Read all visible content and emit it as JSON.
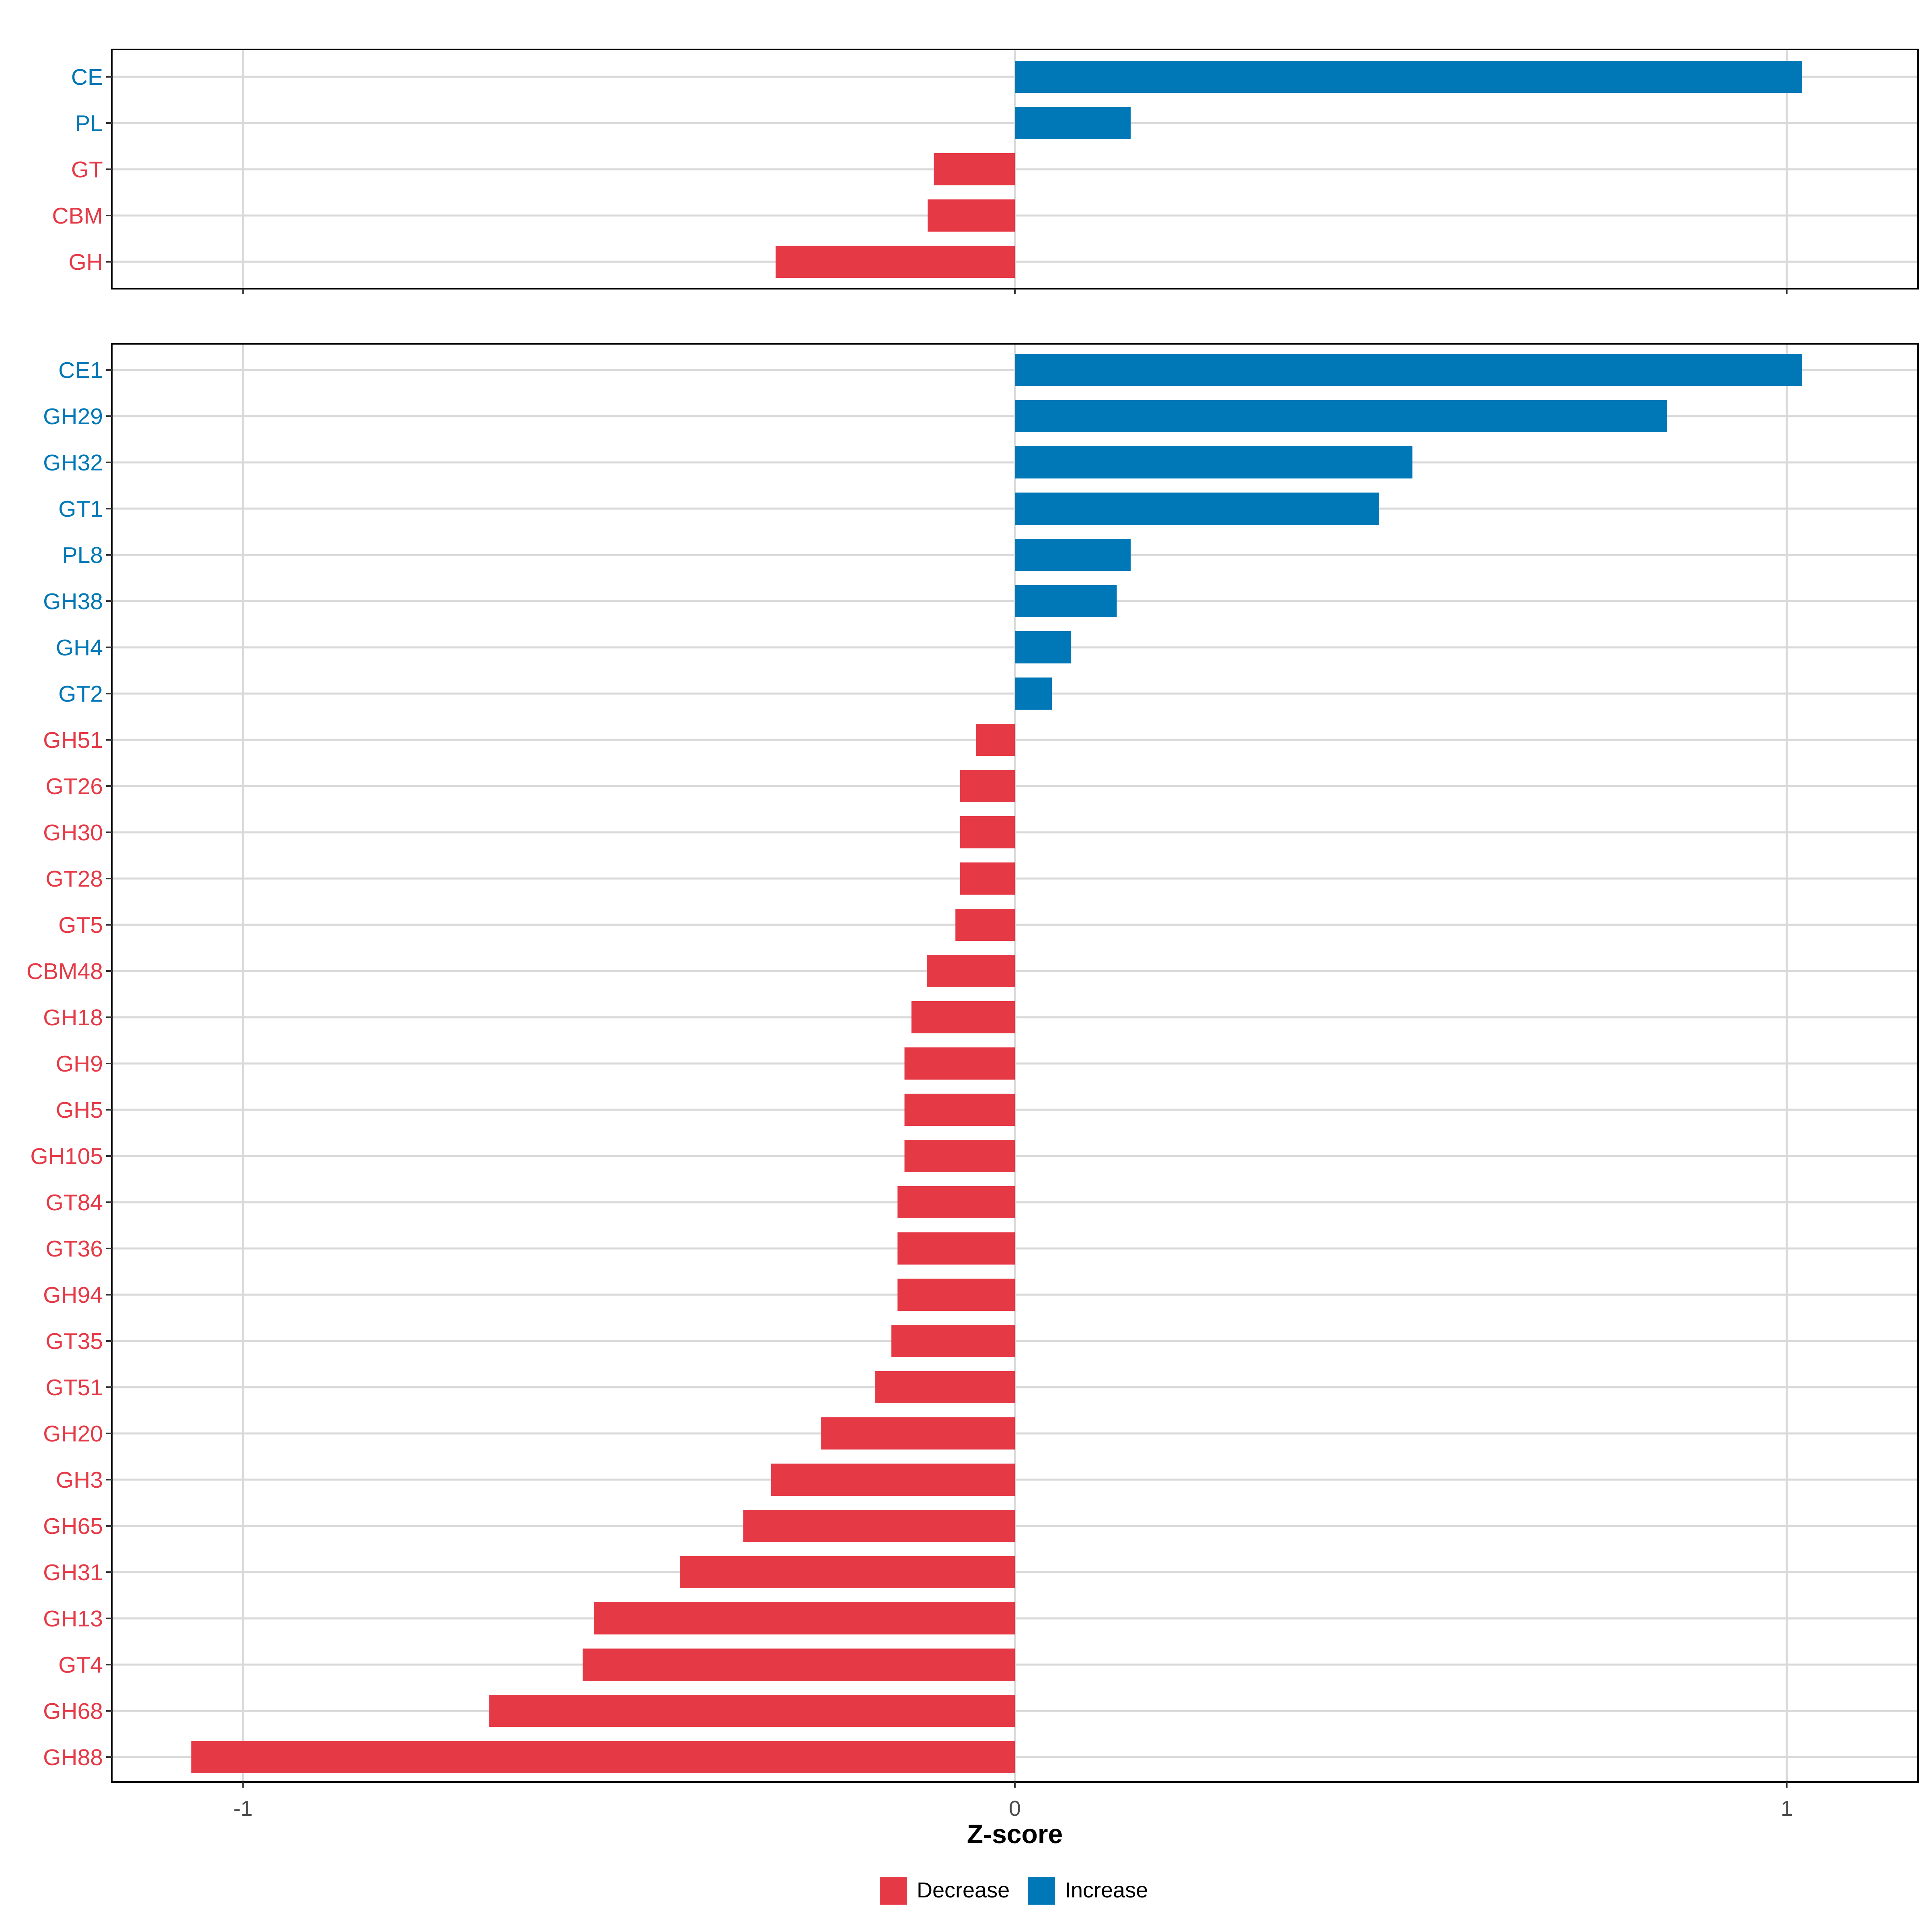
{
  "colors": {
    "decrease": "#e63946",
    "increase": "#0077b6",
    "grid": "#d9d9d9",
    "axis": "#333333"
  },
  "chart_data": [
    {
      "type": "bar",
      "orientation": "horizontal",
      "panel": "top",
      "categories": [
        "CE",
        "PL",
        "GT",
        "CBM",
        "GH"
      ],
      "values": [
        1.02,
        0.15,
        -0.105,
        -0.113,
        -0.31
      ],
      "direction": [
        "Increase",
        "Increase",
        "Decrease",
        "Decrease",
        "Decrease"
      ],
      "xlim": [
        -1.17,
        1.17
      ],
      "xticks": [
        -1,
        0,
        1
      ],
      "xtick_labels": [
        "",
        "",
        ""
      ],
      "xlabel": "",
      "grid": true
    },
    {
      "type": "bar",
      "orientation": "horizontal",
      "panel": "bottom",
      "categories": [
        "CE1",
        "GH29",
        "GH32",
        "GT1",
        "PL8",
        "GH38",
        "GH4",
        "GT2",
        "GH51",
        "GT26",
        "GH30",
        "GT28",
        "GT5",
        "CBM48",
        "GH18",
        "GH9",
        "GH5",
        "GH105",
        "GT84",
        "GT36",
        "GH94",
        "GT35",
        "GT51",
        "GH20",
        "GH3",
        "GH65",
        "GH31",
        "GH13",
        "GT4",
        "GH68",
        "GH88"
      ],
      "values": [
        1.02,
        0.845,
        0.515,
        0.472,
        0.15,
        0.132,
        0.073,
        0.048,
        -0.05,
        -0.071,
        -0.071,
        -0.071,
        -0.077,
        -0.114,
        -0.134,
        -0.143,
        -0.143,
        -0.143,
        -0.152,
        -0.152,
        -0.152,
        -0.16,
        -0.181,
        -0.251,
        -0.316,
        -0.352,
        -0.434,
        -0.545,
        -0.56,
        -0.681,
        -1.067
      ],
      "direction": [
        "Increase",
        "Increase",
        "Increase",
        "Increase",
        "Increase",
        "Increase",
        "Increase",
        "Increase",
        "Decrease",
        "Decrease",
        "Decrease",
        "Decrease",
        "Decrease",
        "Decrease",
        "Decrease",
        "Decrease",
        "Decrease",
        "Decrease",
        "Decrease",
        "Decrease",
        "Decrease",
        "Decrease",
        "Decrease",
        "Decrease",
        "Decrease",
        "Decrease",
        "Decrease",
        "Decrease",
        "Decrease",
        "Decrease",
        "Decrease"
      ],
      "xlim": [
        -1.17,
        1.17
      ],
      "xticks": [
        -1,
        0,
        1
      ],
      "xtick_labels": [
        "-1",
        "0",
        "1"
      ],
      "xlabel": "Z-score",
      "grid": true
    }
  ],
  "legend": {
    "placement": "bottom-center",
    "items": [
      {
        "label": "Decrease",
        "color_key": "decrease"
      },
      {
        "label": "Increase",
        "color_key": "increase"
      }
    ]
  }
}
